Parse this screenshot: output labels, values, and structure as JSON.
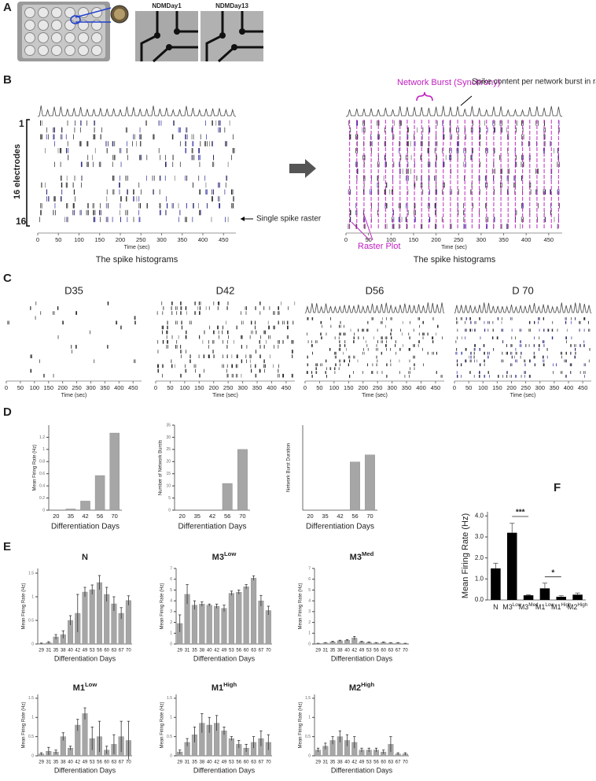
{
  "panels": [
    "A",
    "B",
    "C",
    "D",
    "E",
    "F"
  ],
  "figure_a": {
    "labels": [
      "NDMDay1",
      "NDMDay13"
    ]
  },
  "figure_b": {
    "row_first": "1",
    "row_last": "16",
    "rows_label": "16 electrodes",
    "single_spike": "Single spike raster",
    "burst": "Network Burst (Synchrony)",
    "content": "Spike content per network burst in raster plot",
    "raster_plot": "Raster Plot",
    "histograms": [
      "The spike histograms",
      "The spike histograms"
    ]
  },
  "chart_data": [
    {
      "type": "raster",
      "xlim": [
        0,
        480
      ],
      "xticks": [
        0,
        50,
        100,
        150,
        200,
        250,
        300,
        350,
        400,
        450
      ],
      "xlabel": "Time (sec)"
    },
    {
      "type": "raster",
      "xlim": [
        0,
        480
      ],
      "xticks": [
        0,
        50,
        100,
        150,
        200,
        250,
        300,
        350,
        400,
        450
      ],
      "xlabel": "Time (sec)"
    },
    {
      "type": "raster",
      "title": "D35",
      "xlim": [
        0,
        480
      ],
      "xticks": [
        0,
        50,
        100,
        150,
        200,
        250,
        300,
        350,
        400,
        450
      ],
      "xlabel": "Time (sec)"
    },
    {
      "type": "raster",
      "title": "D42",
      "xlim": [
        0,
        480
      ],
      "xticks": [
        0,
        50,
        100,
        150,
        200,
        250,
        300,
        350,
        400,
        450
      ],
      "xlabel": "Time (sec)"
    },
    {
      "type": "raster",
      "title": "D56",
      "xlim": [
        0,
        480
      ],
      "xticks": [
        0,
        50,
        100,
        150,
        200,
        250,
        300,
        350,
        400,
        450
      ],
      "xlabel": "Time (sec)"
    },
    {
      "type": "raster",
      "title": "D 70",
      "xlim": [
        0,
        480
      ],
      "xticks": [
        0,
        50,
        100,
        150,
        200,
        250,
        300,
        350,
        400,
        450
      ],
      "xlabel": "Time (sec)"
    },
    {
      "type": "bar",
      "categories": [
        "20",
        "35",
        "42",
        "56",
        "70"
      ],
      "values": [
        0,
        0.02,
        0.15,
        0.57,
        1.27
      ],
      "color": "#a6a6a6",
      "ylim": [
        0,
        1.4
      ],
      "yticks": [
        0,
        0.2,
        0.4,
        0.6,
        0.8,
        1,
        1.2
      ],
      "ylabel": "Mean Firing Rate (Hz)",
      "xlabel": "Differentiation Days"
    },
    {
      "type": "bar",
      "categories": [
        "20",
        "35",
        "42",
        "56",
        "70"
      ],
      "values": [
        0,
        0,
        0,
        11,
        25
      ],
      "color": "#a6a6a6",
      "ylim": [
        0,
        35
      ],
      "yticks": [
        0,
        5,
        10,
        15,
        20,
        25,
        30,
        35
      ],
      "ylabel": "Number of Network Bursts",
      "xlabel": "Differentiation Days"
    },
    {
      "type": "bar",
      "categories": [
        "20",
        "35",
        "42",
        "56",
        "70"
      ],
      "values": [
        0,
        0,
        0,
        1.7,
        1.95
      ],
      "color": "#a6a6a6",
      "ylim": [
        0,
        3
      ],
      "ylabel": "Network Burst Duration",
      "xlabel": "Differentiation Days"
    },
    {
      "type": "bar",
      "title": {
        "main": "N"
      },
      "categories": [
        "29",
        "31",
        "35",
        "38",
        "40",
        "42",
        "49",
        "53",
        "56",
        "60",
        "63",
        "67",
        "70"
      ],
      "values": [
        0.01,
        0.03,
        0.15,
        0.2,
        0.5,
        0.65,
        1.1,
        1.15,
        1.3,
        1.05,
        0.85,
        0.65,
        0.92
      ],
      "errors": [
        0.01,
        0.02,
        0.05,
        0.08,
        0.1,
        0.4,
        0.1,
        0.1,
        0.15,
        0.15,
        0.15,
        0.12,
        0.1
      ],
      "color": "#a6a6a6",
      "ylim": [
        0,
        1.6
      ],
      "yticks": [
        0,
        0.5,
        1,
        1.5
      ],
      "ylabel": "Mean Firing Rate (Hz)",
      "xlabel": "Differentiation Days"
    },
    {
      "type": "bar",
      "title": {
        "main": "M3",
        "sup": "Low"
      },
      "categories": [
        "29",
        "31",
        "35",
        "38",
        "40",
        "42",
        "49",
        "53",
        "56",
        "60",
        "63",
        "67",
        "70"
      ],
      "values": [
        1.9,
        4.6,
        3.6,
        3.7,
        3.6,
        3.5,
        3.3,
        4.7,
        4.8,
        5.3,
        6.1,
        4.0,
        3.1
      ],
      "errors": [
        0.8,
        0.9,
        0.4,
        0.2,
        0.1,
        0.2,
        0.3,
        0.2,
        0.2,
        0.2,
        0.2,
        0.5,
        0.4
      ],
      "color": "#a6a6a6",
      "ylim": [
        0,
        7
      ],
      "yticks": [
        0,
        1,
        2,
        3,
        4,
        5,
        6,
        7
      ],
      "ylabel": "Mean Firing Rate (Hz)",
      "xlabel": "Differentiation Days"
    },
    {
      "type": "bar",
      "title": {
        "main": "M3",
        "sup": "Med"
      },
      "categories": [
        "29",
        "31",
        "35",
        "38",
        "40",
        "42",
        "49",
        "53",
        "56",
        "60",
        "63",
        "67",
        "70"
      ],
      "values": [
        0.05,
        0.1,
        0.2,
        0.3,
        0.35,
        0.55,
        0.2,
        0.15,
        0.1,
        0.15,
        0.1,
        0.1,
        0.05
      ],
      "errors": [
        0.02,
        0.03,
        0.05,
        0.05,
        0.05,
        0.15,
        0.05,
        0.04,
        0.03,
        0.04,
        0.03,
        0.03,
        0.02
      ],
      "color": "#a6a6a6",
      "ylim": [
        0,
        7
      ],
      "yticks": [
        0,
        1,
        2,
        3,
        4,
        5,
        6,
        7
      ],
      "ylabel": "Mean Firing Rate (Hz)",
      "xlabel": "Differentiation Days"
    },
    {
      "type": "bar",
      "title": {
        "main": "M1",
        "sup": "Low"
      },
      "categories": [
        "29",
        "31",
        "35",
        "38",
        "40",
        "42",
        "49",
        "53",
        "56",
        "60",
        "63",
        "67",
        "70"
      ],
      "values": [
        0.05,
        0.12,
        0.1,
        0.5,
        0.2,
        0.8,
        1.1,
        0.45,
        0.5,
        0.15,
        0.3,
        0.5,
        0.4
      ],
      "errors": [
        0.03,
        0.1,
        0.05,
        0.1,
        0.05,
        0.15,
        0.15,
        0.3,
        0.4,
        0.1,
        0.25,
        0.4,
        0.5
      ],
      "color": "#a6a6a6",
      "ylim": [
        0,
        1.6
      ],
      "yticks": [
        0,
        0.5,
        1,
        1.5
      ],
      "ylabel": "Mean Firing Rate (Hz)",
      "xlabel": "Differentiation Days"
    },
    {
      "type": "bar",
      "title": {
        "main": "M1",
        "sup": "High"
      },
      "categories": [
        "29",
        "31",
        "35",
        "38",
        "40",
        "42",
        "49",
        "53",
        "56",
        "60",
        "63",
        "67",
        "70"
      ],
      "values": [
        0.1,
        0.35,
        0.55,
        0.85,
        0.8,
        0.85,
        0.65,
        0.45,
        0.3,
        0.2,
        0.35,
        0.45,
        0.35
      ],
      "errors": [
        0.05,
        0.1,
        0.2,
        0.25,
        0.2,
        0.2,
        0.1,
        0.05,
        0.1,
        0.1,
        0.15,
        0.2,
        0.2
      ],
      "color": "#a6a6a6",
      "ylim": [
        0,
        1.6
      ],
      "yticks": [
        0,
        0.5,
        1,
        1.5
      ],
      "ylabel": "Mean Firing Rate (Hz)",
      "xlabel": "Differentiation Days"
    },
    {
      "type": "bar",
      "title": {
        "main": "M2",
        "sup": "High"
      },
      "categories": [
        "29",
        "31",
        "35",
        "38",
        "40",
        "42",
        "49",
        "53",
        "56",
        "60",
        "63",
        "67",
        "70"
      ],
      "values": [
        0.15,
        0.25,
        0.4,
        0.5,
        0.4,
        0.35,
        0.15,
        0.15,
        0.15,
        0.1,
        0.3,
        0.05,
        0.05
      ],
      "errors": [
        0.05,
        0.08,
        0.1,
        0.15,
        0.15,
        0.15,
        0.05,
        0.05,
        0.05,
        0.05,
        0.2,
        0.03,
        0.03
      ],
      "color": "#a6a6a6",
      "ylim": [
        0,
        1.6
      ],
      "yticks": [
        0,
        0.5,
        1,
        1.5
      ],
      "ylabel": "Mean Firing Rate (Hz)",
      "xlabel": "Differentiation Days"
    },
    {
      "type": "bar",
      "categories": [
        {
          "main": "N"
        },
        {
          "main": "M3",
          "sup": "Low"
        },
        {
          "main": "M3",
          "sup": "Med"
        },
        {
          "main": "M1",
          "sup": "Low"
        },
        {
          "main": "M1",
          "sup": "High"
        },
        {
          "main": "M2",
          "sup": "High"
        }
      ],
      "values": [
        1.5,
        3.2,
        0.22,
        0.55,
        0.15,
        0.25
      ],
      "errors": [
        0.25,
        0.45,
        0.03,
        0.25,
        0.05,
        0.08
      ],
      "color": "#000000",
      "ylim": [
        0,
        4.2
      ],
      "yticks": [
        {
          "value": 0,
          "label": "0.0"
        },
        {
          "value": 1,
          "label": "1.0"
        },
        {
          "value": 2,
          "label": "2.0"
        },
        {
          "value": 3,
          "label": "3.0"
        },
        {
          "value": 4,
          "label": "4.0"
        }
      ],
      "ylabel": "Mean Firing Rate (Hz)",
      "annotations": [
        "***",
        "*"
      ]
    }
  ]
}
